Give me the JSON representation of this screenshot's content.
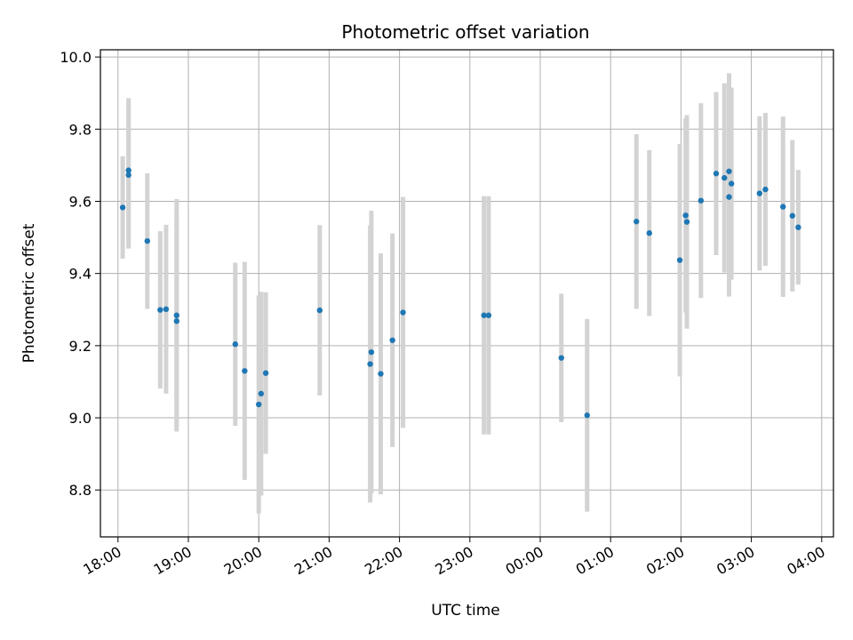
{
  "chart_data": {
    "type": "scatter",
    "title": "Photometric offset variation",
    "xlabel": "UTC time",
    "ylabel": "Photometric offset",
    "x_is_time": true,
    "xlim": [
      "2000-01-01T17:45",
      "2000-01-02T04:10"
    ],
    "ylim": [
      8.67,
      10.02
    ],
    "x_ticks": [
      "2000-01-01T18:00",
      "2000-01-01T19:00",
      "2000-01-01T20:00",
      "2000-01-01T21:00",
      "2000-01-01T22:00",
      "2000-01-01T23:00",
      "2000-01-02T00:00",
      "2000-01-02T01:00",
      "2000-01-02T02:00",
      "2000-01-02T03:00",
      "2000-01-02T04:00"
    ],
    "x_tick_labels": [
      "18:00",
      "19:00",
      "20:00",
      "21:00",
      "22:00",
      "23:00",
      "00:00",
      "01:00",
      "02:00",
      "03:00",
      "04:00"
    ],
    "y_ticks": [
      8.8,
      9.0,
      9.2,
      9.4,
      9.6,
      9.8,
      10.0
    ],
    "y_tick_labels": [
      "8.8",
      "9.0",
      "9.2",
      "9.4",
      "9.6",
      "9.8",
      "10.0"
    ],
    "grid": true,
    "marker_color": "#1f77b4",
    "errorbar_color": "#d3d3d3",
    "points": [
      {
        "x": "2000-01-01T18:04",
        "y": 9.583,
        "err": 0.142
      },
      {
        "x": "2000-01-01T18:09",
        "y": 9.673,
        "err": 0.204
      },
      {
        "x": "2000-01-01T18:09",
        "y": 9.686,
        "err": 0.2
      },
      {
        "x": "2000-01-01T18:25",
        "y": 9.49,
        "err": 0.188
      },
      {
        "x": "2000-01-01T18:36",
        "y": 9.299,
        "err": 0.218
      },
      {
        "x": "2000-01-01T18:41",
        "y": 9.301,
        "err": 0.234
      },
      {
        "x": "2000-01-01T18:50",
        "y": 9.284,
        "err": 0.322
      },
      {
        "x": "2000-01-01T18:50",
        "y": 9.268,
        "err": 0.292
      },
      {
        "x": "2000-01-01T19:40",
        "y": 9.204,
        "err": 0.226
      },
      {
        "x": "2000-01-01T19:48",
        "y": 9.13,
        "err": 0.302
      },
      {
        "x": "2000-01-01T20:00",
        "y": 9.037,
        "err": 0.302
      },
      {
        "x": "2000-01-01T20:02",
        "y": 9.067,
        "err": 0.282
      },
      {
        "x": "2000-01-01T20:06",
        "y": 9.124,
        "err": 0.224
      },
      {
        "x": "2000-01-01T20:52",
        "y": 9.298,
        "err": 0.236
      },
      {
        "x": "2000-01-01T21:35",
        "y": 9.149,
        "err": 0.384
      },
      {
        "x": "2000-01-01T21:36",
        "y": 9.182,
        "err": 0.392
      },
      {
        "x": "2000-01-01T21:44",
        "y": 9.122,
        "err": 0.334
      },
      {
        "x": "2000-01-01T21:54",
        "y": 9.215,
        "err": 0.296
      },
      {
        "x": "2000-01-01T22:03",
        "y": 9.292,
        "err": 0.32
      },
      {
        "x": "2000-01-01T23:12",
        "y": 9.284,
        "err": 0.33
      },
      {
        "x": "2000-01-01T23:16",
        "y": 9.284,
        "err": 0.33
      },
      {
        "x": "2000-01-02T00:18",
        "y": 9.166,
        "err": 0.178
      },
      {
        "x": "2000-01-02T00:40",
        "y": 9.007,
        "err": 0.267
      },
      {
        "x": "2000-01-02T01:22",
        "y": 9.544,
        "err": 0.242
      },
      {
        "x": "2000-01-02T01:33",
        "y": 9.512,
        "err": 0.23
      },
      {
        "x": "2000-01-02T01:59",
        "y": 9.437,
        "err": 0.322
      },
      {
        "x": "2000-01-02T02:04",
        "y": 9.561,
        "err": 0.269
      },
      {
        "x": "2000-01-02T02:05",
        "y": 9.543,
        "err": 0.296
      },
      {
        "x": "2000-01-02T02:17",
        "y": 9.602,
        "err": 0.27
      },
      {
        "x": "2000-01-02T02:30",
        "y": 9.677,
        "err": 0.226
      },
      {
        "x": "2000-01-02T02:37",
        "y": 9.665,
        "err": 0.262
      },
      {
        "x": "2000-01-02T02:41",
        "y": 9.683,
        "err": 0.272
      },
      {
        "x": "2000-01-02T02:41",
        "y": 9.612,
        "err": 0.276
      },
      {
        "x": "2000-01-02T02:43",
        "y": 9.649,
        "err": 0.266
      },
      {
        "x": "2000-01-02T03:07",
        "y": 9.622,
        "err": 0.214
      },
      {
        "x": "2000-01-02T03:12",
        "y": 9.633,
        "err": 0.212
      },
      {
        "x": "2000-01-02T03:27",
        "y": 9.585,
        "err": 0.25
      },
      {
        "x": "2000-01-02T03:35",
        "y": 9.56,
        "err": 0.21
      },
      {
        "x": "2000-01-02T03:40",
        "y": 9.528,
        "err": 0.159
      }
    ]
  }
}
